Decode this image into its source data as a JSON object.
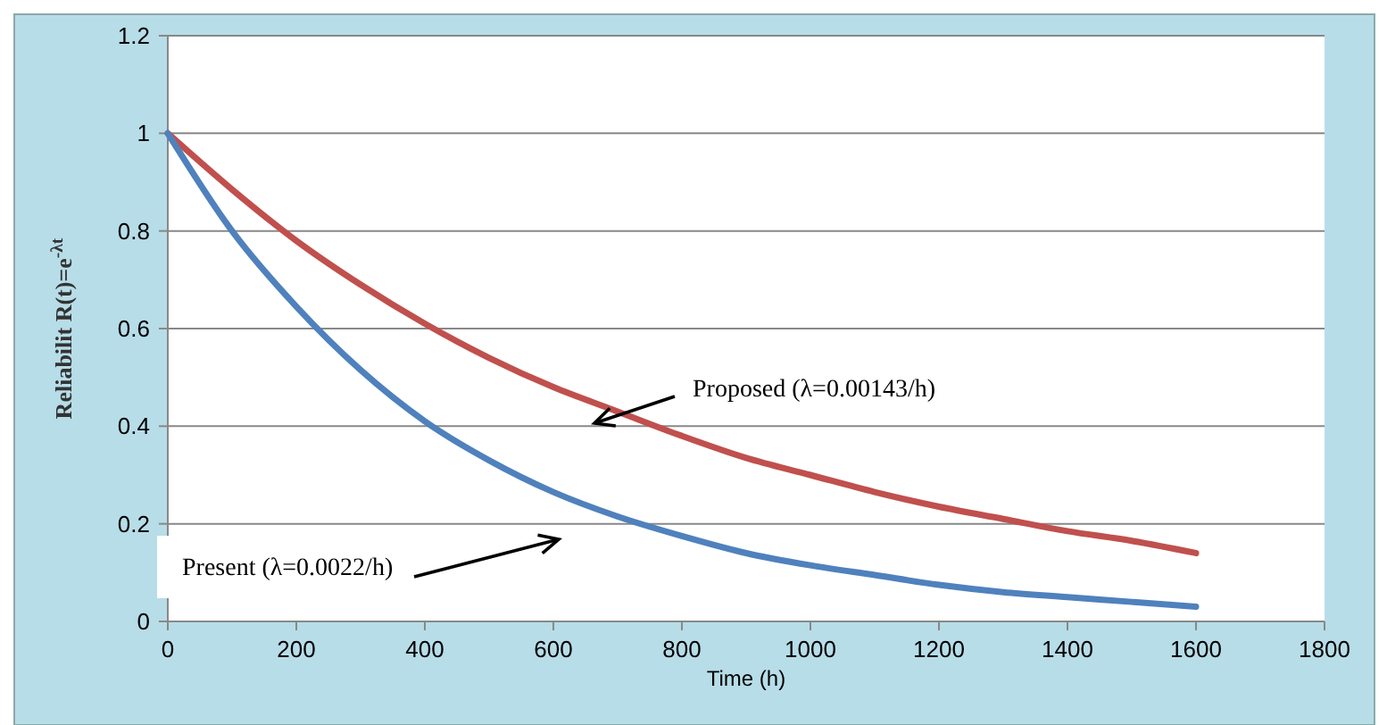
{
  "chart_data": {
    "type": "line",
    "xlabel": "Time (h)",
    "ylabel": "Reliabilit R(t)=e$^{-λt}$",
    "x": [
      0,
      100,
      200,
      300,
      400,
      500,
      600,
      700,
      800,
      900,
      1000,
      1100,
      1200,
      1300,
      1400,
      1500,
      1600
    ],
    "series": [
      {
        "color": "#c0504d",
        "values": [
          1,
          0.885,
          0.78,
          0.69,
          0.61,
          0.54,
          0.48,
          0.43,
          0.38,
          0.335,
          0.3,
          0.265,
          0.235,
          0.21,
          0.185,
          0.165,
          0.14
        ]
      },
      {
        "color": "#4f81bd",
        "values": [
          1,
          0.8,
          0.645,
          0.515,
          0.41,
          0.33,
          0.265,
          0.215,
          0.175,
          0.14,
          0.115,
          0.095,
          0.075,
          0.06,
          0.05,
          0.04,
          0.03
        ]
      }
    ],
    "annotations": [
      "Proposed (λ=0.00143/h)",
      "Present (λ=0.0022/h)"
    ],
    "xlim": [
      0,
      1800
    ],
    "xticks": [
      0,
      200,
      400,
      600,
      800,
      1000,
      1200,
      1400,
      1600,
      1800
    ],
    "ylim": [
      0,
      1.2
    ],
    "yticks": [
      0,
      0.2,
      0.4,
      0.6,
      0.8,
      1,
      1.2
    ],
    "grid": "y",
    "marker": "none",
    "line_style": "solid"
  }
}
